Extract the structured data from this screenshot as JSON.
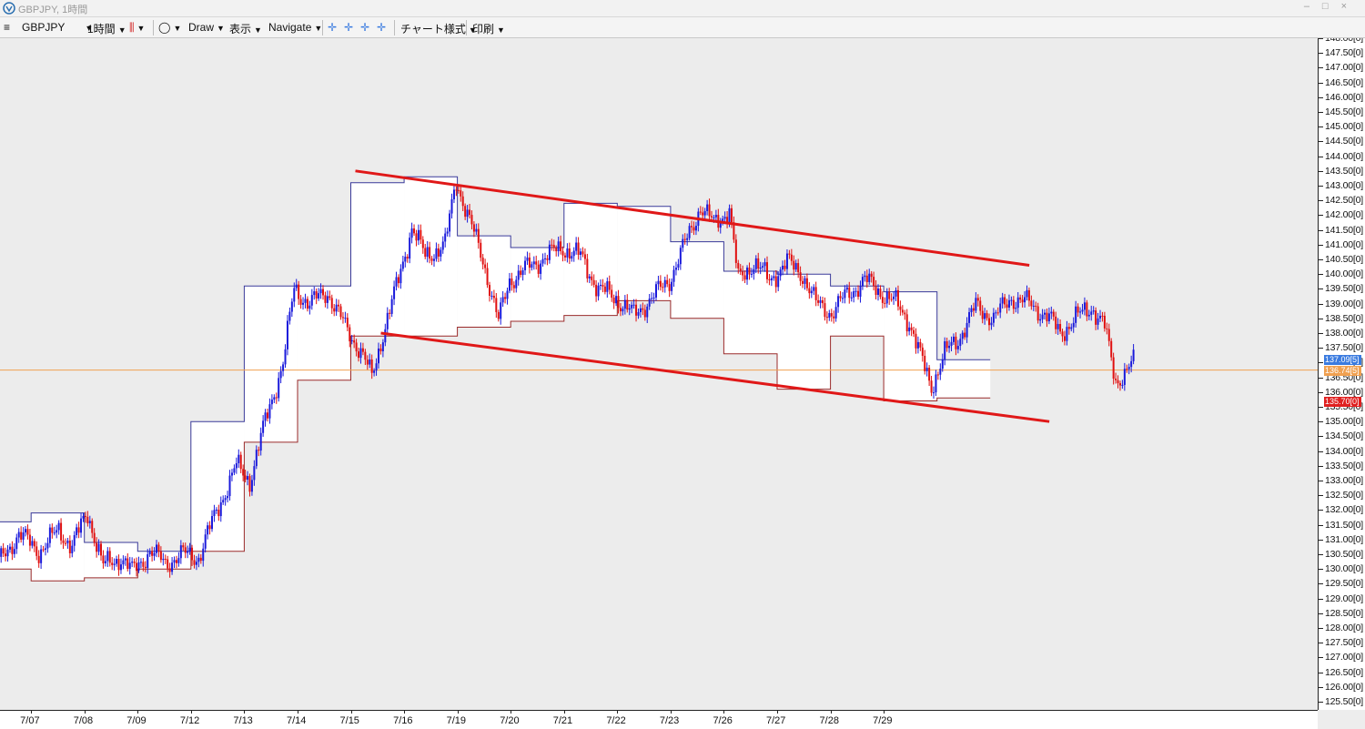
{
  "window": {
    "title": "GBPJPY, 1時間"
  },
  "toolbar": {
    "symbol": "GBPJPY",
    "timeframe": "1時間",
    "draw": "Draw",
    "display": "表示",
    "navigate": "Navigate",
    "chart_style": "チャート様式",
    "print": "印刷"
  },
  "colors": {
    "up_candle": "#1a1adb",
    "down_candle": "#e01010",
    "trendline": "#e01818",
    "box_upper": "#3a3a9a",
    "box_lower": "#9a2a2a",
    "current_price_line": "#f0a050",
    "badge_blue": "#3a7be0",
    "badge_orange": "#f0a050",
    "badge_red": "#e02020"
  },
  "chart_data": {
    "type": "candlestick",
    "symbol": "GBPJPY",
    "timeframe": "1時間",
    "x_labels": [
      "7/07",
      "7/08",
      "7/09",
      "7/12",
      "7/13",
      "7/14",
      "7/15",
      "7/16",
      "7/19",
      "7/20",
      "7/21",
      "7/22",
      "7/23",
      "7/26",
      "7/27",
      "7/28",
      "7/29"
    ],
    "y_labels": [
      "125.50[0]",
      "126.00[0]",
      "126.50[0]",
      "127.00[0]",
      "127.50[0]",
      "128.00[0]",
      "128.50[0]",
      "129.00[0]",
      "129.50[0]",
      "130.00[0]",
      "130.50[0]",
      "131.00[0]",
      "131.50[0]",
      "132.00[0]",
      "132.50[0]",
      "133.00[0]",
      "133.50[0]",
      "134.00[0]",
      "134.50[0]",
      "135.00[0]",
      "135.50[0]",
      "136.00[0]",
      "136.50[0]",
      "137.00[0]",
      "137.50[0]",
      "138.00[0]",
      "138.50[0]",
      "139.00[0]",
      "139.50[0]",
      "140.00[0]",
      "140.50[0]",
      "141.00[0]",
      "141.50[0]",
      "142.00[0]",
      "142.50[0]",
      "143.00[0]",
      "143.50[0]",
      "144.00[0]",
      "144.50[0]",
      "145.00[0]",
      "145.50[0]",
      "146.00[0]",
      "146.50[0]",
      "147.00[0]",
      "147.50[0]",
      "148.00[0]"
    ],
    "ylim": [
      125.5,
      148.0
    ],
    "badges": [
      {
        "label": "137.09[5]",
        "value": 137.09,
        "color": "#3a7be0"
      },
      {
        "label": "136.74[5]",
        "value": 136.745,
        "color": "#f0a050"
      },
      {
        "label": "135.70[0]",
        "value": 135.7,
        "color": "#e02020"
      }
    ],
    "current_price": 136.745,
    "daily_ranges": [
      {
        "day": "7/06",
        "high": 131.6,
        "low": 130.0
      },
      {
        "day": "7/07",
        "high": 131.9,
        "low": 129.6
      },
      {
        "day": "7/08",
        "high": 130.9,
        "low": 129.7
      },
      {
        "day": "7/09",
        "high": 130.6,
        "low": 130.0
      },
      {
        "day": "7/12",
        "high": 135.0,
        "low": 130.6
      },
      {
        "day": "7/13",
        "high": 139.6,
        "low": 134.3
      },
      {
        "day": "7/14",
        "high": 139.6,
        "low": 136.4
      },
      {
        "day": "7/15",
        "high": 143.1,
        "low": 137.9
      },
      {
        "day": "7/16",
        "high": 143.3,
        "low": 137.9
      },
      {
        "day": "7/19",
        "high": 141.3,
        "low": 138.2
      },
      {
        "day": "7/20",
        "high": 140.9,
        "low": 138.4
      },
      {
        "day": "7/21",
        "high": 142.4,
        "low": 138.6
      },
      {
        "day": "7/22",
        "high": 142.3,
        "low": 139.1
      },
      {
        "day": "7/23",
        "high": 141.1,
        "low": 138.5
      },
      {
        "day": "7/26",
        "high": 140.1,
        "low": 137.3
      },
      {
        "day": "7/27",
        "high": 140.0,
        "low": 136.1
      },
      {
        "day": "7/28",
        "high": 139.6,
        "low": 137.9
      },
      {
        "day": "7/29",
        "high": 139.4,
        "low": 135.7
      },
      {
        "day": "7/30",
        "high": 137.1,
        "low": 135.8
      }
    ],
    "price_path": [
      [
        0,
        130.2
      ],
      [
        9,
        131.2
      ],
      [
        18,
        130.6
      ],
      [
        27,
        131.3
      ],
      [
        33,
        130.8
      ],
      [
        40,
        131.9
      ],
      [
        47,
        130.1
      ],
      [
        55,
        130.4
      ],
      [
        60,
        129.9
      ],
      [
        68,
        130.6
      ],
      [
        75,
        130.2
      ],
      [
        83,
        130.5
      ],
      [
        90,
        130.4
      ],
      [
        93,
        131.0
      ],
      [
        100,
        132.3
      ],
      [
        107,
        133.5
      ],
      [
        113,
        133.0
      ],
      [
        120,
        135.0
      ],
      [
        128,
        137.0
      ],
      [
        133,
        139.5
      ],
      [
        140,
        139.0
      ],
      [
        148,
        139.4
      ],
      [
        156,
        138.2
      ],
      [
        163,
        137.4
      ],
      [
        168,
        136.5
      ],
      [
        173,
        138.0
      ],
      [
        180,
        139.8
      ],
      [
        186,
        141.6
      ],
      [
        192,
        140.6
      ],
      [
        201,
        141.0
      ],
      [
        206,
        143.2
      ],
      [
        212,
        141.8
      ],
      [
        218,
        140.5
      ],
      [
        225,
        138.4
      ],
      [
        230,
        139.8
      ],
      [
        238,
        140.2
      ],
      [
        246,
        140.6
      ],
      [
        254,
        140.9
      ],
      [
        262,
        140.6
      ],
      [
        270,
        139.5
      ],
      [
        278,
        139.2
      ],
      [
        286,
        138.6
      ],
      [
        294,
        139.2
      ],
      [
        302,
        139.8
      ],
      [
        310,
        141.2
      ],
      [
        316,
        142.3
      ],
      [
        322,
        141.7
      ],
      [
        329,
        142.2
      ],
      [
        333,
        139.8
      ],
      [
        340,
        140.4
      ],
      [
        347,
        139.8
      ],
      [
        355,
        140.4
      ],
      [
        362,
        140.0
      ],
      [
        368,
        139.0
      ],
      [
        375,
        138.7
      ],
      [
        382,
        139.3
      ],
      [
        390,
        139.8
      ],
      [
        397,
        139.4
      ],
      [
        404,
        139.0
      ],
      [
        410,
        138.4
      ],
      [
        415,
        137.2
      ],
      [
        420,
        136.2
      ],
      [
        426,
        137.3
      ],
      [
        432,
        137.8
      ],
      [
        440,
        138.9
      ],
      [
        448,
        138.5
      ],
      [
        456,
        139.2
      ],
      [
        464,
        139.0
      ],
      [
        472,
        138.6
      ],
      [
        478,
        138.0
      ],
      [
        485,
        138.5
      ],
      [
        492,
        138.9
      ],
      [
        498,
        138.2
      ],
      [
        503,
        136.4
      ],
      [
        507,
        136.6
      ],
      [
        511,
        137.0
      ]
    ],
    "trendlines": [
      {
        "x1_day": "7/15",
        "y1": 143.5,
        "x2_day": "7/30+",
        "y2": 140.3
      },
      {
        "x1_day": "7/15",
        "y1": 138.0,
        "x2_day": "7/30+",
        "y2": 135.0
      }
    ]
  }
}
